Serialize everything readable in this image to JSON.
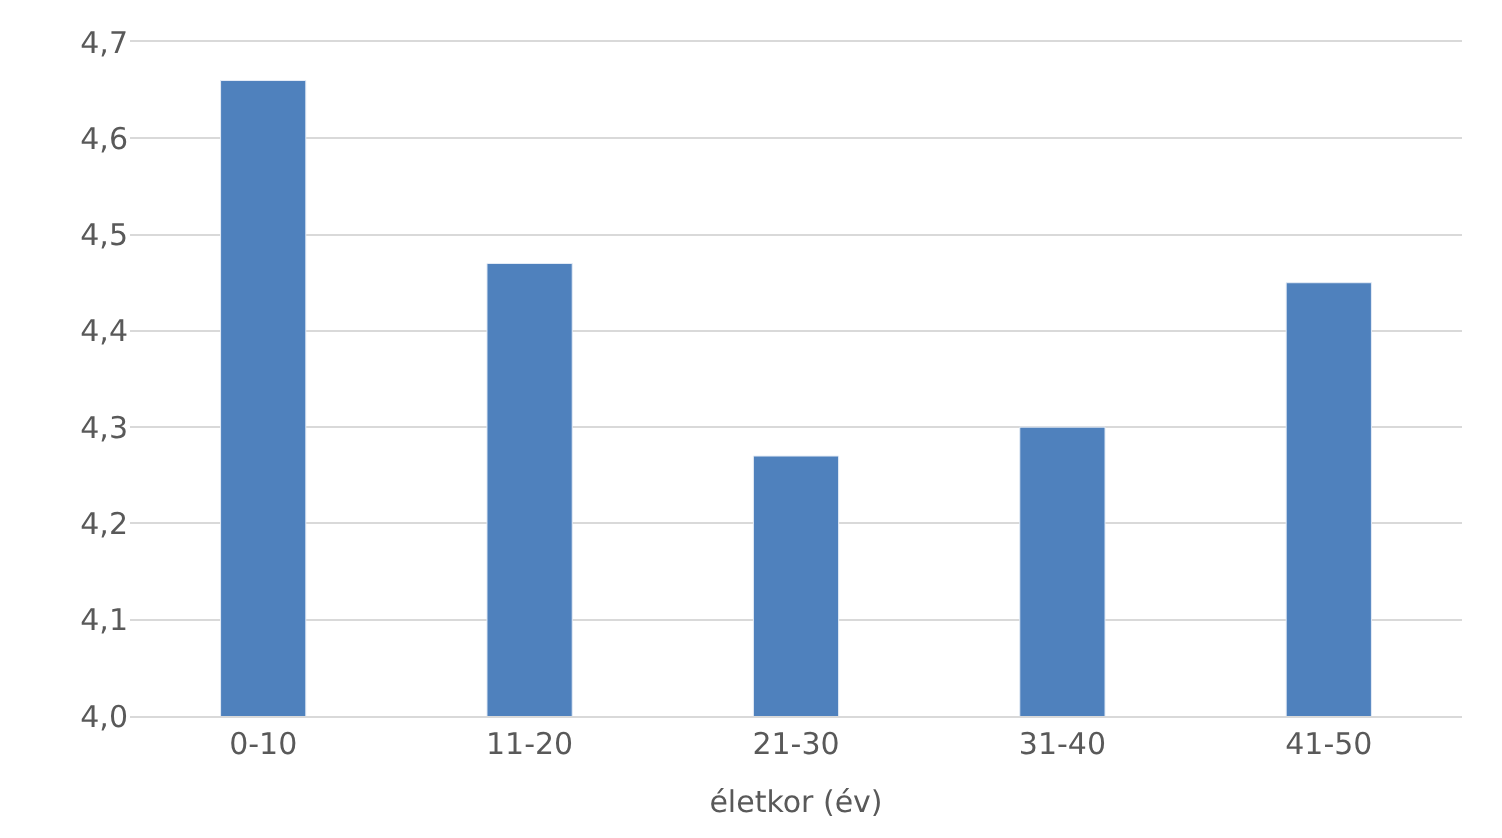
{
  "chart_data": {
    "type": "bar",
    "xlabel": "életkor (év)",
    "categories": [
      "0-10",
      "11-20",
      "21-30",
      "31-40",
      "41-50"
    ],
    "values": [
      4.66,
      4.47,
      4.27,
      4.3,
      4.45
    ],
    "color": "#4f81bd",
    "ylim": [
      4.0,
      4.7
    ],
    "yticks": [
      {
        "value": 4.0,
        "label": "4,0"
      },
      {
        "value": 4.1,
        "label": "4,1"
      },
      {
        "value": 4.2,
        "label": "4,2"
      },
      {
        "value": 4.3,
        "label": "4,3"
      },
      {
        "value": 4.4,
        "label": "4,4"
      },
      {
        "value": 4.5,
        "label": "4,5"
      },
      {
        "value": 4.6,
        "label": "4,6"
      },
      {
        "value": 4.7,
        "label": "4,7"
      }
    ],
    "grid": "y"
  }
}
